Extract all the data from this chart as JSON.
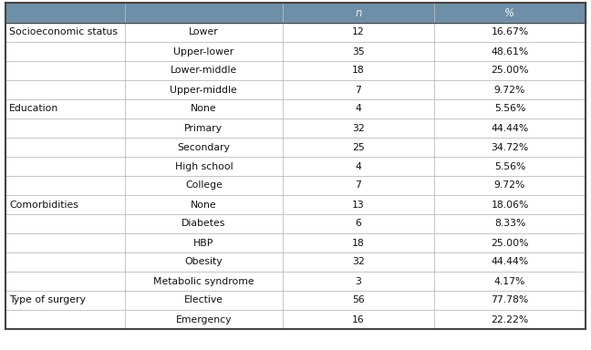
{
  "header_bg": "#6d8fa8",
  "header_text_color": "#f0f0f0",
  "row_bg_white": "#ffffff",
  "row_line_color": "#bbbbbb",
  "outer_line_color": "#444444",
  "col3_header": "n",
  "col4_header": "%",
  "rows": [
    [
      "Socioeconomic status",
      "Lower",
      "12",
      "16.67%"
    ],
    [
      "",
      "Upper-lower",
      "35",
      "48.61%"
    ],
    [
      "",
      "Lower-middle",
      "18",
      "25.00%"
    ],
    [
      "",
      "Upper-middle",
      "7",
      "9.72%"
    ],
    [
      "Education",
      "None",
      "4",
      "5.56%"
    ],
    [
      "",
      "Primary",
      "32",
      "44.44%"
    ],
    [
      "",
      "Secondary",
      "25",
      "34.72%"
    ],
    [
      "",
      "High school",
      "4",
      "5.56%"
    ],
    [
      "",
      "College",
      "7",
      "9.72%"
    ],
    [
      "Comorbidities",
      "None",
      "13",
      "18.06%"
    ],
    [
      "",
      "Diabetes",
      "6",
      "8.33%"
    ],
    [
      "",
      "HBP",
      "18",
      "25.00%"
    ],
    [
      "",
      "Obesity",
      "32",
      "44.44%"
    ],
    [
      "",
      "Metabolic syndrome",
      "3",
      "4.17%"
    ],
    [
      "Type of surgery",
      "Elective",
      "56",
      "77.78%"
    ],
    [
      "",
      "Emergency",
      "16",
      "22.22%"
    ]
  ],
  "figsize": [
    6.48,
    3.84
  ],
  "dpi": 100,
  "font_size": 7.8,
  "header_font_size": 8.5
}
